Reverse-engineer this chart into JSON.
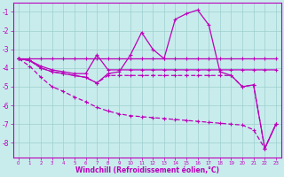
{
  "xlabel": "Windchill (Refroidissement éolien,°C)",
  "x_ticks": [
    0,
    1,
    2,
    3,
    4,
    5,
    6,
    7,
    8,
    9,
    10,
    11,
    12,
    13,
    14,
    15,
    16,
    17,
    18,
    19,
    20,
    21,
    22,
    23
  ],
  "ylim": [
    -8.8,
    -0.5
  ],
  "yticks": [
    -8,
    -7,
    -6,
    -5,
    -4,
    -3,
    -2,
    -1
  ],
  "background_color": "#c8ecec",
  "line_color": "#bb00bb",
  "grid_color": "#9ecece",
  "line1_x": [
    0,
    1,
    2,
    3,
    4,
    5,
    6,
    7,
    8,
    9,
    10,
    11,
    12,
    13,
    14,
    15,
    16,
    17,
    18,
    19,
    20,
    21,
    22,
    23
  ],
  "line1_y": [
    -3.5,
    -3.5,
    -3.5,
    -3.5,
    -3.5,
    -3.5,
    -3.5,
    -3.5,
    -3.5,
    -3.5,
    -3.5,
    -3.5,
    -3.5,
    -3.5,
    -3.5,
    -3.5,
    -3.5,
    -3.5,
    -3.5,
    -3.5,
    -3.5,
    -3.5,
    -3.5,
    -3.5
  ],
  "line2_x": [
    0,
    1,
    2,
    3,
    4,
    5,
    6,
    7,
    8,
    9,
    10,
    11,
    12,
    13,
    14,
    15,
    16,
    17,
    18,
    19,
    20,
    21,
    22,
    23
  ],
  "line2_y": [
    -3.5,
    -3.6,
    -3.9,
    -4.1,
    -4.2,
    -4.3,
    -4.3,
    -3.3,
    -4.1,
    -4.1,
    -4.1,
    -4.1,
    -4.1,
    -4.1,
    -4.1,
    -4.1,
    -4.1,
    -4.1,
    -4.1,
    -4.1,
    -4.1,
    -4.1,
    -4.1,
    -4.1
  ],
  "line3_x": [
    0,
    1,
    2,
    3,
    4,
    5,
    6,
    7,
    8,
    9,
    10,
    11,
    12,
    13,
    14,
    15,
    16,
    17,
    18,
    19,
    20,
    21,
    22,
    23
  ],
  "line3_y": [
    -3.5,
    -3.6,
    -4.0,
    -4.2,
    -4.3,
    -4.4,
    -4.5,
    -4.8,
    -4.4,
    -4.4,
    -4.4,
    -4.4,
    -4.4,
    -4.4,
    -4.4,
    -4.4,
    -4.4,
    -4.4,
    -4.4,
    -4.4,
    -5.0,
    -4.9,
    -8.3,
    -7.0
  ],
  "line4_x": [
    0,
    1,
    2,
    3,
    4,
    5,
    6,
    7,
    8,
    9,
    10,
    11,
    12,
    13,
    14,
    15,
    16,
    17,
    18,
    19,
    20,
    21,
    22,
    23
  ],
  "line4_y": [
    -3.5,
    -3.6,
    -4.0,
    -4.2,
    -4.3,
    -4.4,
    -4.5,
    -4.8,
    -4.3,
    -4.2,
    -3.3,
    -2.1,
    -3.0,
    -3.5,
    -1.4,
    -1.1,
    -0.9,
    -1.7,
    -4.2,
    -4.4,
    -5.0,
    -4.9,
    -8.3,
    -7.0
  ],
  "line5_x": [
    0,
    1,
    2,
    3,
    4,
    5,
    6,
    7,
    8,
    9,
    10,
    11,
    12,
    13,
    14,
    15,
    16,
    17,
    18,
    19,
    20,
    21,
    22,
    23
  ],
  "line5_y": [
    -3.5,
    -3.9,
    -4.5,
    -5.0,
    -5.25,
    -5.55,
    -5.8,
    -6.1,
    -6.3,
    -6.45,
    -6.55,
    -6.6,
    -6.65,
    -6.7,
    -6.75,
    -6.8,
    -6.85,
    -6.9,
    -6.95,
    -7.0,
    -7.05,
    -7.3,
    -8.3,
    -7.0
  ]
}
